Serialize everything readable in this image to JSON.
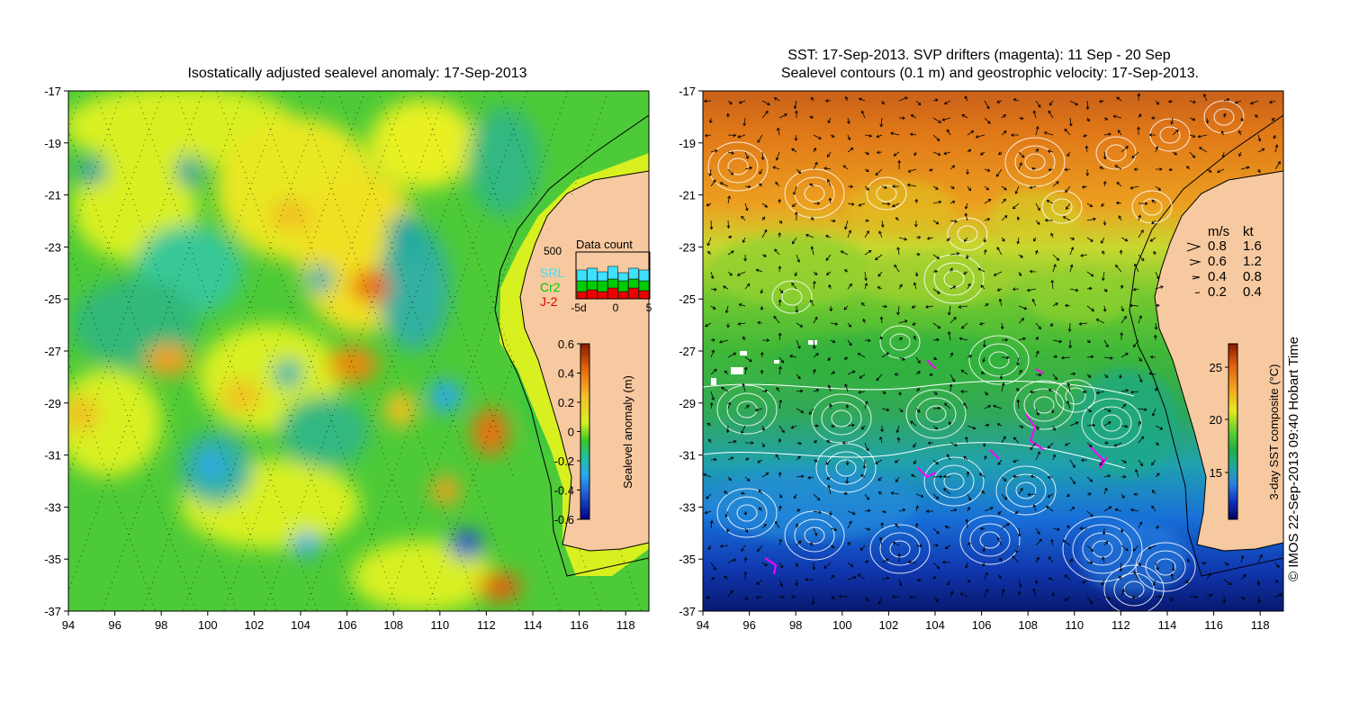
{
  "left_panel": {
    "title": "Isostatically adjusted sealevel anomaly: 17-Sep-2013",
    "lon_ticks": [
      "94",
      "96",
      "98",
      "100",
      "102",
      "104",
      "106",
      "108",
      "110",
      "112",
      "114",
      "116",
      "118"
    ],
    "lat_ticks": [
      "-17",
      "-19",
      "-21",
      "-23",
      "-25",
      "-27",
      "-29",
      "-31",
      "-33",
      "-35",
      "-37"
    ],
    "colorbar": {
      "label": "Sealevel anomaly (m)",
      "ticks": [
        "0.6",
        "0.4",
        "0.2",
        "0",
        "-0.2",
        "-0.4",
        "-0.6"
      ],
      "colors": [
        "#8a1a00",
        "#e86a10",
        "#f5c02a",
        "#d8f020",
        "#38c828",
        "#20c0a0",
        "#2aa8f0",
        "#1f50d0",
        "#000080"
      ]
    },
    "data_count": {
      "title": "Data count",
      "ytick": "500",
      "xticks": [
        "-5d",
        "0",
        "5"
      ],
      "legend": [
        {
          "name": "SRL",
          "color": "#40e0ff"
        },
        {
          "name": "Cr2",
          "color": "#00cc00"
        },
        {
          "name": "J-2",
          "color": "#ee0000"
        }
      ]
    },
    "colors": {
      "land": "#f7c9a0",
      "shelf": "#d8f020",
      "base": "#4dca38"
    }
  },
  "right_panel": {
    "title_line1": "SST: 17-Sep-2013. SVP drifters (magenta): 11 Sep - 20 Sep",
    "title_line2": "Sealevel contours (0.1 m) and geostrophic velocity: 17-Sep-2013.",
    "lon_ticks": [
      "94",
      "96",
      "98",
      "100",
      "102",
      "104",
      "106",
      "108",
      "110",
      "112",
      "114",
      "116",
      "118"
    ],
    "lat_ticks": [
      "-17",
      "-19",
      "-21",
      "-23",
      "-25",
      "-27",
      "-29",
      "-31",
      "-33",
      "-35",
      "-37"
    ],
    "velocity_legend": {
      "header_ms": "m/s",
      "header_kt": "kt",
      "rows": [
        {
          "ms": "0.8",
          "kt": "1.6"
        },
        {
          "ms": "0.6",
          "kt": "1.2"
        },
        {
          "ms": "0.4",
          "kt": "0.8"
        },
        {
          "ms": "0.2",
          "kt": "0.4"
        }
      ]
    },
    "colorbar": {
      "label": "3-day SST composite (°C)",
      "ticks": [
        "25",
        "20",
        "15"
      ],
      "colors": [
        "#8a1a00",
        "#e06010",
        "#f5a020",
        "#e8e820",
        "#60d030",
        "#20b040",
        "#20a8a0",
        "#2a80e0",
        "#1030c0",
        "#000060"
      ]
    },
    "colors": {
      "land": "#f7c9a0",
      "drifter": "#ff00ff",
      "contour": "#ffffff"
    }
  },
  "credit": "© IMOS 22-Sep-2013 09:40 Hobart Time"
}
